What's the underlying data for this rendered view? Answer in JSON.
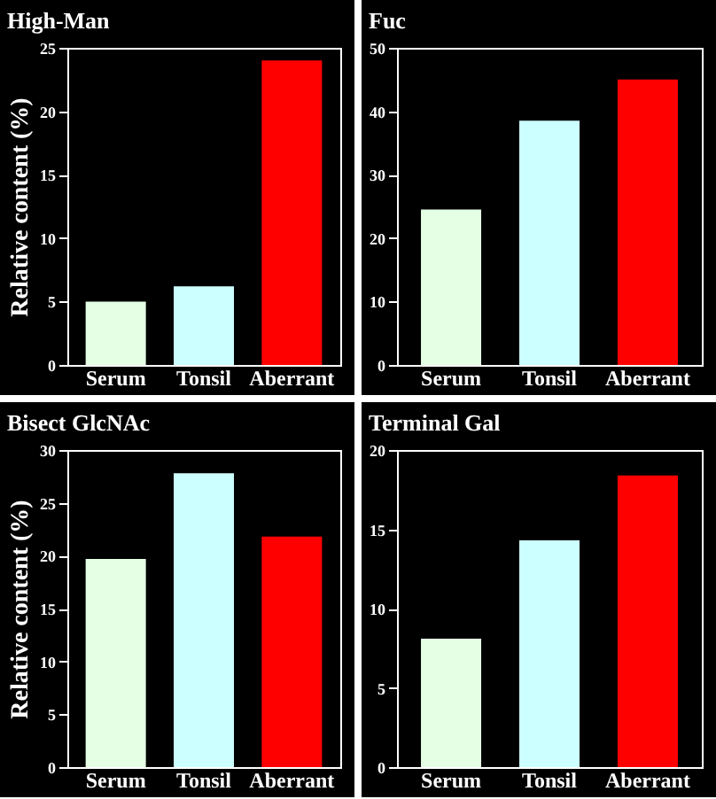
{
  "chart_data": [
    {
      "type": "bar",
      "title": "High-Man",
      "ylabel": "Relative content (%)",
      "categories": [
        "Serum",
        "Tonsil",
        "Aberrant"
      ],
      "values": [
        5,
        6.2,
        24
      ],
      "colors": [
        "#e4ffe4",
        "#ccffff",
        "#ff0000"
      ],
      "ylim": [
        0,
        25
      ],
      "yticks": [
        0,
        5,
        10,
        15,
        20,
        25
      ]
    },
    {
      "type": "bar",
      "title": "Fuc",
      "categories": [
        "Serum",
        "Tonsil",
        "Aberrant"
      ],
      "values": [
        24.5,
        38.5,
        45
      ],
      "colors": [
        "#e4ffe4",
        "#ccffff",
        "#ff0000"
      ],
      "ylim": [
        0,
        50
      ],
      "yticks": [
        0,
        10,
        20,
        30,
        40,
        50
      ]
    },
    {
      "type": "bar",
      "title": "Bisect GlcNAc",
      "ylabel": "Relative content (%)",
      "categories": [
        "Serum",
        "Tonsil",
        "Aberrant"
      ],
      "values": [
        19.7,
        27.8,
        21.8
      ],
      "colors": [
        "#e4ffe4",
        "#ccffff",
        "#ff0000"
      ],
      "ylim": [
        0,
        30
      ],
      "yticks": [
        0,
        5,
        10,
        15,
        20,
        25,
        30
      ]
    },
    {
      "type": "bar",
      "title": "Terminal Gal",
      "categories": [
        "Serum",
        "Tonsil",
        "Aberrant"
      ],
      "values": [
        8.1,
        14.3,
        18.4
      ],
      "colors": [
        "#e4ffe4",
        "#ccffff",
        "#ff0000"
      ],
      "ylim": [
        0,
        20
      ],
      "yticks": [
        0,
        5,
        10,
        15,
        20
      ]
    }
  ]
}
